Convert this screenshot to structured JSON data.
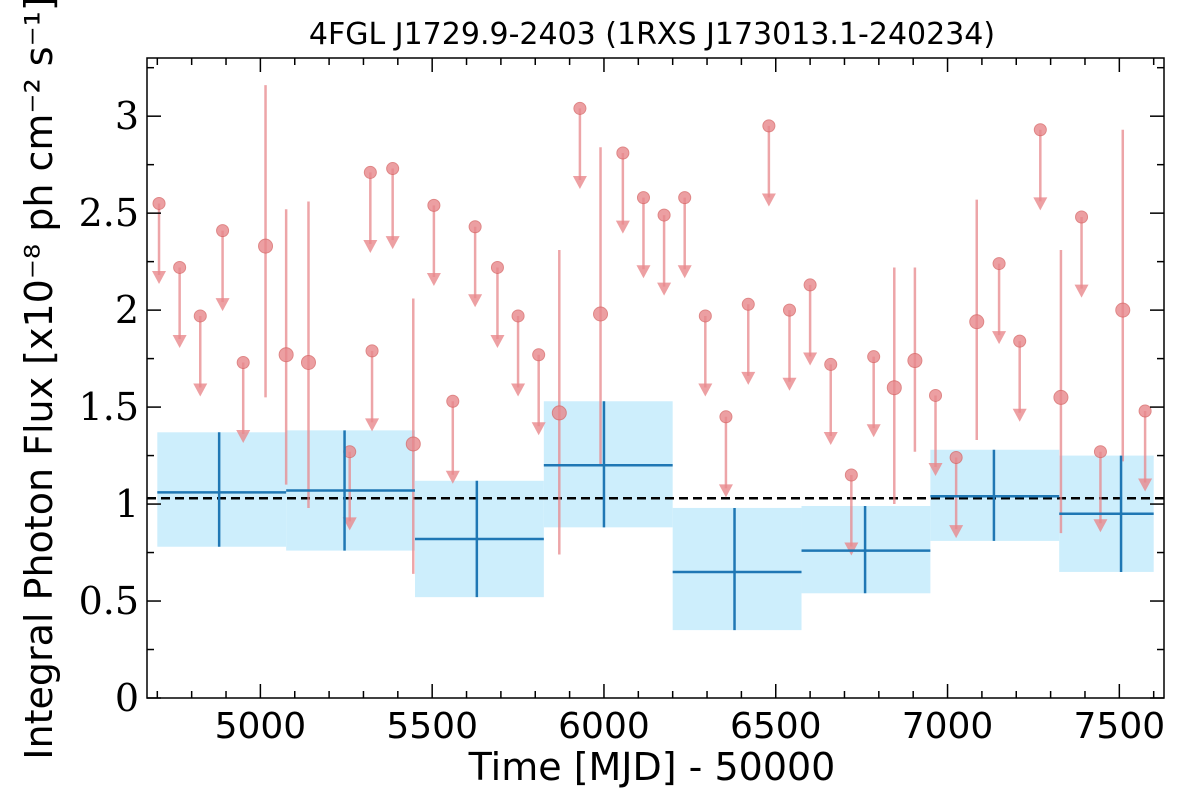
{
  "chart_data": {
    "type": "scatter",
    "title": "4FGL J1729.9-2403 (1RXS J173013.1-240234)",
    "xlabel": "Time [MJD] - 50000",
    "ylabel": "Integral Photon Flux [x10⁻⁸ ph cm⁻² s⁻¹]",
    "xlim": [
      4670,
      7630
    ],
    "ylim": [
      0,
      3.3
    ],
    "x_ticks": [
      5000,
      5500,
      6000,
      6500,
      7000,
      7500
    ],
    "y_ticks": [
      {
        "value": 0,
        "label": "0"
      },
      {
        "value": 0.5,
        "label": "0.5"
      },
      {
        "value": 1,
        "label": "1"
      },
      {
        "value": 1.5,
        "label": "1.5"
      },
      {
        "value": 2,
        "label": "2"
      },
      {
        "value": 2.5,
        "label": "2.5"
      },
      {
        "value": 3,
        "label": "3"
      }
    ],
    "average_flux": 1.03,
    "colors": {
      "points": "#e8888c",
      "points_edge": "#d86868",
      "bins": "#1f77b4",
      "band": "#cdeefc",
      "average_line": "#000000"
    },
    "upper_limits": [
      {
        "x": 4705,
        "y": 2.55,
        "to": 2.15
      },
      {
        "x": 4765,
        "y": 2.22,
        "to": 1.82
      },
      {
        "x": 4825,
        "y": 1.97,
        "to": 1.57
      },
      {
        "x": 4890,
        "y": 2.41,
        "to": 2.01
      },
      {
        "x": 4950,
        "y": 1.73,
        "to": 1.33
      },
      {
        "x": 5260,
        "y": 1.27,
        "to": 0.88
      },
      {
        "x": 5320,
        "y": 2.71,
        "to": 2.31
      },
      {
        "x": 5325,
        "y": 1.79,
        "to": 1.39
      },
      {
        "x": 5385,
        "y": 2.73,
        "to": 2.33
      },
      {
        "x": 5505,
        "y": 2.54,
        "to": 2.14
      },
      {
        "x": 5560,
        "y": 1.53,
        "to": 1.12
      },
      {
        "x": 5625,
        "y": 2.43,
        "to": 2.03
      },
      {
        "x": 5690,
        "y": 2.22,
        "to": 1.82
      },
      {
        "x": 5750,
        "y": 1.97,
        "to": 1.57
      },
      {
        "x": 5810,
        "y": 1.77,
        "to": 1.37
      },
      {
        "x": 5930,
        "y": 3.04,
        "to": 2.64
      },
      {
        "x": 6055,
        "y": 2.81,
        "to": 2.41
      },
      {
        "x": 6115,
        "y": 2.58,
        "to": 2.18
      },
      {
        "x": 6175,
        "y": 2.49,
        "to": 2.09
      },
      {
        "x": 6235,
        "y": 2.58,
        "to": 2.18
      },
      {
        "x": 6295,
        "y": 1.97,
        "to": 1.57
      },
      {
        "x": 6355,
        "y": 1.45,
        "to": 1.05
      },
      {
        "x": 6420,
        "y": 2.03,
        "to": 1.63
      },
      {
        "x": 6480,
        "y": 2.95,
        "to": 2.55
      },
      {
        "x": 6540,
        "y": 2.0,
        "to": 1.6
      },
      {
        "x": 6600,
        "y": 2.13,
        "to": 1.73
      },
      {
        "x": 6660,
        "y": 1.72,
        "to": 1.32
      },
      {
        "x": 6720,
        "y": 1.15,
        "to": 0.75
      },
      {
        "x": 6785,
        "y": 1.76,
        "to": 1.36
      },
      {
        "x": 6965,
        "y": 1.56,
        "to": 1.16
      },
      {
        "x": 7025,
        "y": 1.24,
        "to": 0.84
      },
      {
        "x": 7150,
        "y": 2.24,
        "to": 1.84
      },
      {
        "x": 7210,
        "y": 1.84,
        "to": 1.44
      },
      {
        "x": 7270,
        "y": 2.93,
        "to": 2.53
      },
      {
        "x": 7390,
        "y": 2.48,
        "to": 2.08
      },
      {
        "x": 7445,
        "y": 1.27,
        "to": 0.87
      },
      {
        "x": 7575,
        "y": 1.48,
        "to": 1.08
      }
    ],
    "detections": [
      {
        "x": 5015,
        "y": 2.33,
        "lo": 1.55,
        "hi": 3.16
      },
      {
        "x": 5075,
        "y": 1.77,
        "lo": 1.1,
        "hi": 2.52
      },
      {
        "x": 5140,
        "y": 1.73,
        "lo": 0.98,
        "hi": 2.56
      },
      {
        "x": 5445,
        "y": 1.31,
        "lo": 0.64,
        "hi": 2.06
      },
      {
        "x": 5870,
        "y": 1.47,
        "lo": 0.74,
        "hi": 2.31
      },
      {
        "x": 5990,
        "y": 1.98,
        "lo": 1.2,
        "hi": 2.84
      },
      {
        "x": 6845,
        "y": 1.6,
        "lo": 1.0,
        "hi": 2.22
      },
      {
        "x": 6905,
        "y": 1.74,
        "lo": 1.27,
        "hi": 2.22
      },
      {
        "x": 7085,
        "y": 1.94,
        "lo": 1.33,
        "hi": 2.57
      },
      {
        "x": 7330,
        "y": 1.55,
        "lo": 0.85,
        "hi": 2.31
      },
      {
        "x": 7510,
        "y": 2.0,
        "lo": 1.22,
        "hi": 2.93
      }
    ],
    "bins": [
      {
        "x0": 4700,
        "x1": 5075,
        "x": 4880,
        "y": 1.06,
        "lo": 0.78,
        "hi": 1.37
      },
      {
        "x0": 5075,
        "x1": 5450,
        "x": 5245,
        "y": 1.07,
        "lo": 0.76,
        "hi": 1.38
      },
      {
        "x0": 5450,
        "x1": 5825,
        "x": 5630,
        "y": 0.82,
        "lo": 0.52,
        "hi": 1.12
      },
      {
        "x0": 5825,
        "x1": 6200,
        "x": 6000,
        "y": 1.2,
        "lo": 0.88,
        "hi": 1.53
      },
      {
        "x0": 6200,
        "x1": 6575,
        "x": 6380,
        "y": 0.65,
        "lo": 0.35,
        "hi": 0.98
      },
      {
        "x0": 6575,
        "x1": 6950,
        "x": 6760,
        "y": 0.76,
        "lo": 0.54,
        "hi": 0.99
      },
      {
        "x0": 6950,
        "x1": 7325,
        "x": 7135,
        "y": 1.04,
        "lo": 0.81,
        "hi": 1.28
      },
      {
        "x0": 7325,
        "x1": 7700,
        "x": 7505,
        "y": 0.95,
        "lo": 0.65,
        "hi": 1.25
      }
    ]
  }
}
